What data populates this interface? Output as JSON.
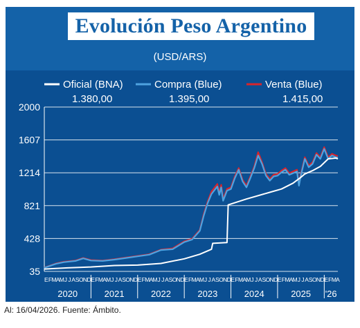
{
  "header": {
    "title": "Evolución Peso Argentino",
    "subtitle": "(USD/ARS)"
  },
  "legend": [
    {
      "name": "Oficial (BNA)",
      "color": "#ffffff",
      "last_value": "1.380,00"
    },
    {
      "name": "Compra (Blue)",
      "color": "#4fa3e0",
      "last_value": "1.395,00"
    },
    {
      "name": "Venta (Blue)",
      "color": "#d9242b",
      "last_value": "1.415,00"
    }
  ],
  "footer": {
    "note": "Al: 16/04/2026. Fuente: Ámbito."
  },
  "chart_data": {
    "type": "line",
    "title": "Evolución Peso Argentino",
    "subtitle": "(USD/ARS)",
    "ylim": [
      35,
      2000
    ],
    "yticks": [
      35,
      428,
      821,
      1214,
      1607,
      2000
    ],
    "ytick_labels": [
      "35",
      "428",
      "821",
      "1214",
      "1607",
      "2000"
    ],
    "grid": true,
    "legend_position": "top",
    "month_labels": "EFMAMJJASOND",
    "year_labels": [
      "2020",
      "2021",
      "2022",
      "2023",
      "2024",
      "2025",
      "'26"
    ],
    "x_range_months": [
      0,
      75.5
    ],
    "series": [
      {
        "name": "Oficial (BNA)",
        "color": "#ffffff",
        "x": [
          0,
          6,
          12,
          18,
          24,
          30,
          36,
          40,
          43,
          43.3,
          47,
          47.3,
          52,
          58,
          61,
          64,
          66,
          67,
          69,
          71,
          73,
          75,
          75.5
        ],
        "y": [
          63,
          77,
          88,
          105,
          110,
          130,
          185,
          240,
          300,
          370,
          380,
          830,
          900,
          980,
          1020,
          1090,
          1160,
          1200,
          1240,
          1290,
          1380,
          1390,
          1380
        ]
      },
      {
        "name": "Compra (Blue)",
        "color": "#4fa3e0",
        "x": [
          0,
          3,
          5,
          8,
          10,
          12,
          15,
          18,
          21,
          24,
          27,
          30,
          33,
          36,
          38,
          40,
          41,
          42,
          43,
          44,
          44.5,
          45,
          45.5,
          46,
          47,
          48,
          49,
          50,
          51,
          52,
          53,
          54,
          55,
          56,
          57,
          58,
          59,
          60,
          61,
          62,
          63,
          64,
          65,
          65.5,
          66,
          67,
          68,
          69,
          70,
          71,
          72,
          73,
          74,
          75,
          75.5
        ],
        "y": [
          78,
          125,
          145,
          160,
          190,
          165,
          160,
          175,
          195,
          215,
          235,
          290,
          300,
          385,
          415,
          520,
          700,
          850,
          960,
          1020,
          1050,
          950,
          1040,
          880,
          1000,
          1020,
          1150,
          1250,
          1110,
          1040,
          1150,
          1270,
          1420,
          1320,
          1180,
          1120,
          1170,
          1180,
          1220,
          1250,
          1190,
          1210,
          1230,
          1060,
          1180,
          1380,
          1280,
          1320,
          1430,
          1380,
          1500,
          1380,
          1420,
          1400,
          1395
        ]
      },
      {
        "name": "Venta (Blue)",
        "color": "#d9242b",
        "x": [
          0,
          3,
          5,
          8,
          10,
          12,
          15,
          18,
          21,
          24,
          27,
          30,
          33,
          36,
          38,
          40,
          41,
          42,
          43,
          44,
          44.5,
          45,
          45.5,
          46,
          47,
          48,
          49,
          50,
          51,
          52,
          53,
          54,
          55,
          56,
          57,
          58,
          59,
          60,
          61,
          62,
          63,
          64,
          65,
          65.5,
          66,
          67,
          68,
          69,
          70,
          71,
          72,
          73,
          74,
          75,
          75.5
        ],
        "y": [
          80,
          130,
          150,
          165,
          195,
          170,
          165,
          180,
          200,
          220,
          240,
          295,
          310,
          395,
          425,
          530,
          720,
          870,
          990,
          1050,
          1080,
          980,
          1070,
          900,
          1020,
          1040,
          1170,
          1270,
          1130,
          1060,
          1170,
          1290,
          1460,
          1340,
          1200,
          1140,
          1190,
          1200,
          1240,
          1270,
          1210,
          1230,
          1250,
          1080,
          1200,
          1400,
          1300,
          1340,
          1450,
          1400,
          1520,
          1400,
          1440,
          1420,
          1415
        ]
      }
    ]
  }
}
